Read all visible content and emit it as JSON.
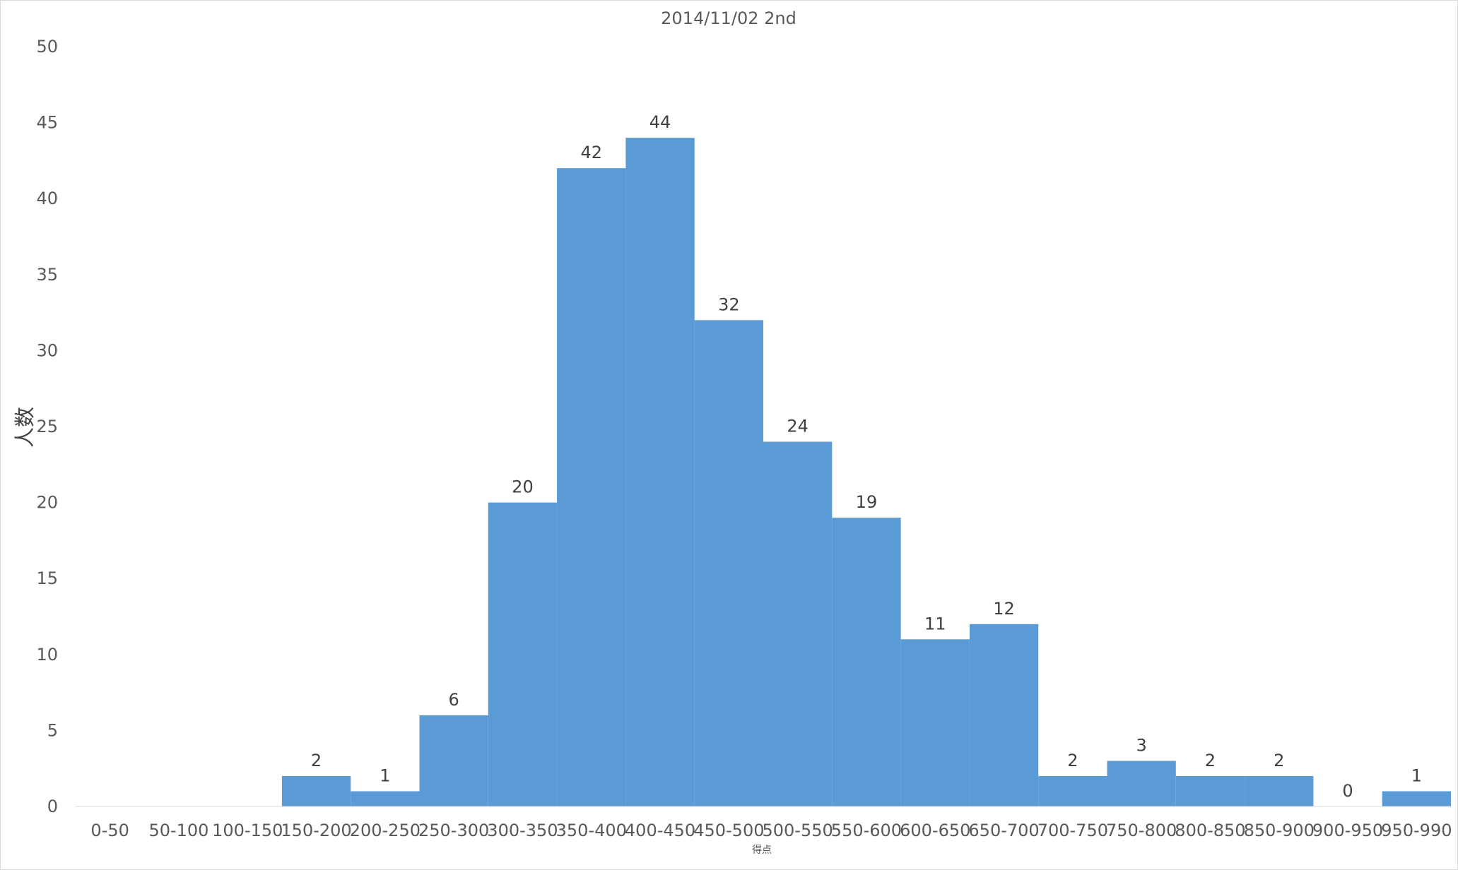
{
  "chart_data": {
    "type": "bar",
    "title": "2014/11/02 2nd",
    "xlabel": "得点",
    "ylabel": "人数",
    "categories": [
      "0-50",
      "50-100",
      "100-150",
      "150-200",
      "200-250",
      "250-300",
      "300-350",
      "350-400",
      "400-450",
      "450-500",
      "500-550",
      "550-600",
      "600-650",
      "650-700",
      "700-750",
      "750-800",
      "800-850",
      "850-900",
      "900-950",
      "950-990"
    ],
    "values": [
      null,
      null,
      null,
      2,
      1,
      6,
      20,
      42,
      44,
      32,
      24,
      19,
      11,
      12,
      2,
      3,
      2,
      2,
      0,
      1
    ],
    "ylim": [
      0,
      50
    ],
    "yticks": [
      0,
      5,
      10,
      15,
      20,
      25,
      30,
      35,
      40,
      45,
      50
    ],
    "grid": false,
    "legend": "none",
    "bar_color": "#5b9bd5",
    "gap_width": 0
  }
}
